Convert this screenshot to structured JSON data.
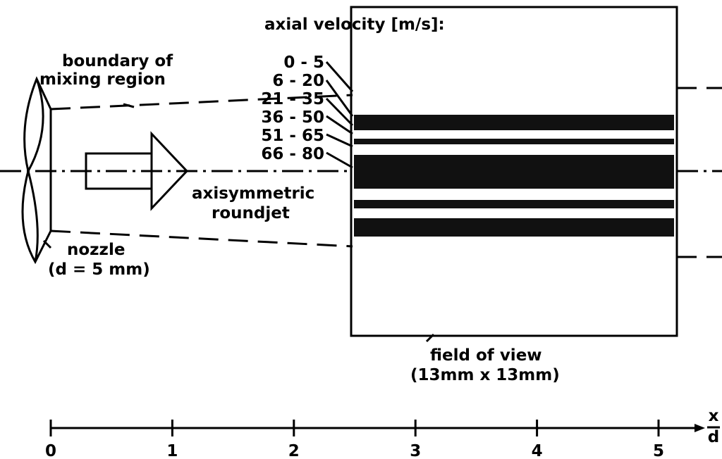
{
  "title": "axial velocity [m/s]:",
  "legend": [
    "0 - 5",
    "6 - 20",
    "21 - 35",
    "36 - 50",
    "51 - 65",
    "66 - 80"
  ],
  "labels": {
    "boundary": [
      "boundary of",
      "mixing region"
    ],
    "jet": [
      "axisymmetric",
      "roundjet"
    ],
    "nozzle": [
      "nozzle",
      "(d = 5 mm)"
    ],
    "field": [
      "field of view",
      "(13mm x 13mm)"
    ]
  },
  "axis": {
    "ticks": [
      0,
      1,
      2,
      3,
      4,
      5
    ],
    "label_top": "x",
    "label_bottom": "d"
  }
}
